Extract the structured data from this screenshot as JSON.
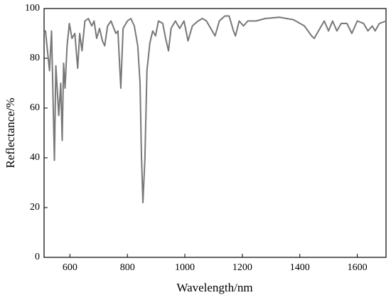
{
  "chart_data": {
    "type": "line",
    "x_label": "Wavelength/nm",
    "y_label": "Reflectance/%",
    "xlim": [
      510,
      1700
    ],
    "ylim": [
      0,
      100
    ],
    "xticks": [
      600,
      800,
      1000,
      1200,
      1400,
      1600
    ],
    "yticks": [
      0,
      20,
      40,
      60,
      80,
      100
    ],
    "series": [
      {
        "color": "#787878",
        "x": [
          510,
          515,
          520,
          529,
          536,
          546,
          551,
          561,
          568,
          573,
          578,
          583,
          590,
          598,
          607,
          617,
          627,
          634,
          642,
          652,
          664,
          676,
          684,
          693,
          703,
          713,
          721,
          731,
          743,
          753,
          760,
          767,
          777,
          785,
          800,
          812,
          824,
          836,
          844,
          849,
          854,
          861,
          868,
          878,
          888,
          898,
          908,
          923,
          933,
          943,
          952,
          967,
          982,
          997,
          1011,
          1026,
          1046,
          1061,
          1075,
          1090,
          1105,
          1120,
          1139,
          1154,
          1169,
          1176,
          1189,
          1204,
          1219,
          1248,
          1280,
          1329,
          1378,
          1416,
          1441,
          1450,
          1465,
          1485,
          1500,
          1514,
          1529,
          1544,
          1564,
          1581,
          1600,
          1622,
          1637,
          1652,
          1662,
          1677,
          1700
        ],
        "values": [
          90,
          91,
          85,
          75,
          91,
          39,
          77,
          57,
          70,
          47,
          78,
          68,
          85,
          94,
          88,
          90,
          76,
          90,
          83,
          95,
          96,
          93,
          95,
          88,
          92,
          87,
          85,
          93,
          95,
          92,
          90,
          91,
          68,
          92,
          95,
          96,
          93,
          85,
          70,
          40,
          22,
          40,
          75,
          86,
          91,
          89,
          95,
          94,
          88,
          83,
          92,
          95,
          92,
          95,
          87,
          93,
          95,
          96,
          95,
          92,
          89,
          95,
          97,
          97,
          91,
          89,
          95,
          93,
          95,
          95,
          96,
          96.5,
          95.5,
          93,
          89,
          88,
          91,
          95,
          91,
          95,
          91,
          94,
          94,
          90,
          95,
          94,
          91,
          93,
          91,
          94,
          95
        ]
      }
    ]
  }
}
